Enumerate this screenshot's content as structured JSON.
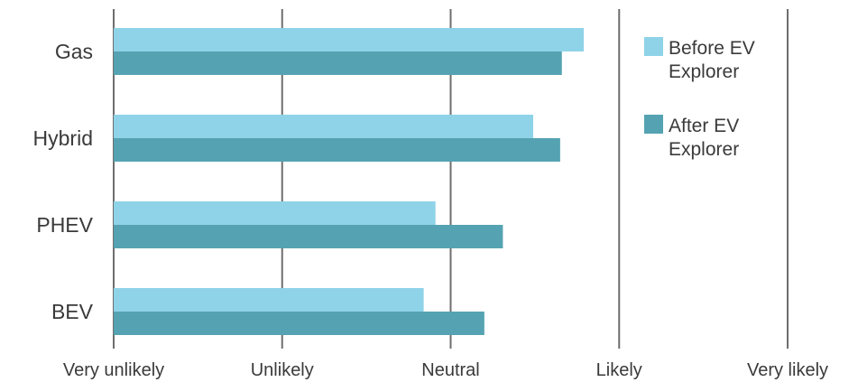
{
  "chart_data": {
    "type": "bar",
    "orientation": "horizontal",
    "categories": [
      "Gas",
      "Hybrid",
      "PHEV",
      "BEV"
    ],
    "series": [
      {
        "name": "Before EV Explorer",
        "legend_lines": [
          "Before EV",
          "Explorer"
        ],
        "color": "#8fd3e8",
        "values": [
          3.79,
          3.49,
          2.91,
          2.84
        ]
      },
      {
        "name": "After EV Explorer",
        "legend_lines": [
          "After EV",
          "Explorer"
        ],
        "color": "#55a3b2",
        "values": [
          3.66,
          3.65,
          3.31,
          3.2
        ]
      }
    ],
    "x_ticks": [
      "Very unlikely",
      "Unlikely",
      "Neutral",
      "Likely",
      "Very likely"
    ],
    "xlim": [
      1,
      5
    ],
    "grid": "vertical",
    "legend_position": "right"
  }
}
